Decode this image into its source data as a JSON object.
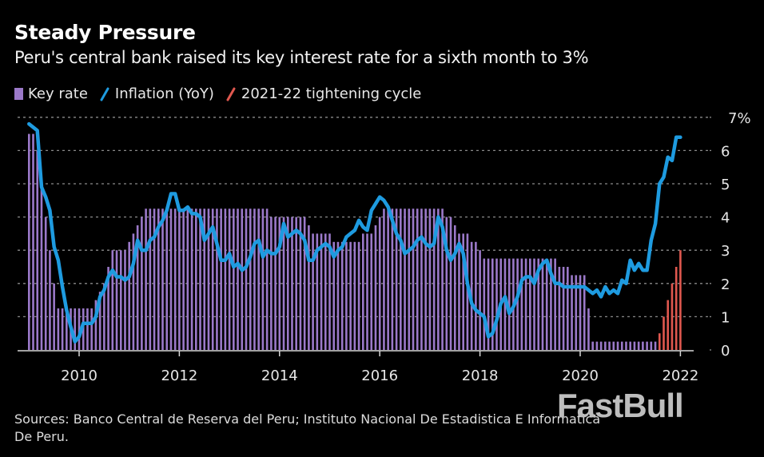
{
  "header": {
    "title": "Steady Pressure",
    "subtitle": "Peru's central bank raised its key interest rate for a sixth month to 3%"
  },
  "legend": [
    {
      "label": "Key rate",
      "color": "#9b79c9",
      "shape": "box"
    },
    {
      "label": "Inflation (YoY)",
      "color": "#1e9be0",
      "shape": "line"
    },
    {
      "label": "2021-22 tightening cycle",
      "color": "#e0584f",
      "shape": "line"
    }
  ],
  "footer": {
    "sources": "Sources: Banco Central de Reserva del Peru; Instituto Nacional De Estadistica E Informatica De Peru.",
    "watermark": "FastBull"
  },
  "chart_data": {
    "type": "bar",
    "title": "Steady Pressure",
    "subtitle": "Peru's central bank raised its key interest rate for a sixth month to 3%",
    "xlabel": "",
    "ylabel": "",
    "ylim": [
      0,
      7
    ],
    "y_ticks": [
      "0",
      "1",
      "2",
      "3",
      "4",
      "5",
      "6",
      "7%"
    ],
    "x_ticks": [
      "2010",
      "2012",
      "2014",
      "2016",
      "2018",
      "2020",
      "2022"
    ],
    "x_start": "2009-01",
    "frequency": "monthly",
    "grid": true,
    "legend_position": "top-left",
    "colors": {
      "key_rate": "#9b79c9",
      "inflation": "#1e9be0",
      "tightening": "#e0584f",
      "grid": "#8a8a8a"
    },
    "series": [
      {
        "name": "Key rate",
        "type": "bar",
        "values": [
          6.5,
          6.5,
          6.0,
          5.0,
          4.0,
          3.0,
          2.0,
          1.25,
          1.25,
          1.25,
          1.25,
          1.25,
          1.25,
          1.25,
          1.25,
          1.25,
          1.5,
          1.75,
          2.0,
          2.5,
          3.0,
          3.0,
          3.0,
          3.0,
          3.25,
          3.5,
          3.75,
          4.0,
          4.25,
          4.25,
          4.25,
          4.25,
          4.25,
          4.25,
          4.25,
          4.25,
          4.25,
          4.25,
          4.25,
          4.25,
          4.25,
          4.25,
          4.25,
          4.25,
          4.25,
          4.25,
          4.25,
          4.25,
          4.25,
          4.25,
          4.25,
          4.25,
          4.25,
          4.25,
          4.25,
          4.25,
          4.25,
          4.25,
          4.0,
          4.0,
          4.0,
          4.0,
          4.0,
          4.0,
          4.0,
          4.0,
          4.0,
          3.75,
          3.5,
          3.5,
          3.5,
          3.5,
          3.5,
          3.25,
          3.25,
          3.25,
          3.25,
          3.25,
          3.25,
          3.25,
          3.5,
          3.5,
          3.5,
          3.75,
          4.0,
          4.25,
          4.25,
          4.25,
          4.25,
          4.25,
          4.25,
          4.25,
          4.25,
          4.25,
          4.25,
          4.25,
          4.25,
          4.25,
          4.25,
          4.25,
          4.0,
          4.0,
          3.75,
          3.5,
          3.5,
          3.5,
          3.25,
          3.25,
          3.0,
          2.75,
          2.75,
          2.75,
          2.75,
          2.75,
          2.75,
          2.75,
          2.75,
          2.75,
          2.75,
          2.75,
          2.75,
          2.75,
          2.75,
          2.75,
          2.75,
          2.75,
          2.75,
          2.5,
          2.5,
          2.5,
          2.25,
          2.25,
          2.25,
          2.25,
          1.25,
          0.25,
          0.25,
          0.25,
          0.25,
          0.25,
          0.25,
          0.25,
          0.25,
          0.25,
          0.25,
          0.25,
          0.25,
          0.25,
          0.25,
          0.25,
          0.25
        ]
      },
      {
        "name": "2021-22 tightening cycle",
        "type": "bar",
        "start": "2021-08",
        "values": [
          0.5,
          1.0,
          1.5,
          2.0,
          2.5,
          3.0
        ]
      },
      {
        "name": "Inflation (YoY)",
        "type": "line",
        "values": [
          6.8,
          6.7,
          6.6,
          4.9,
          4.6,
          4.2,
          3.1,
          2.7,
          1.9,
          1.2,
          0.7,
          0.25,
          0.4,
          0.8,
          0.8,
          0.8,
          1.0,
          1.6,
          1.8,
          2.2,
          2.4,
          2.2,
          2.2,
          2.1,
          2.2,
          2.6,
          3.3,
          3.0,
          3.0,
          3.3,
          3.4,
          3.7,
          3.9,
          4.2,
          4.7,
          4.7,
          4.2,
          4.2,
          4.3,
          4.1,
          4.1,
          4.0,
          3.3,
          3.5,
          3.7,
          3.2,
          2.7,
          2.7,
          2.9,
          2.5,
          2.6,
          2.4,
          2.5,
          2.8,
          3.2,
          3.3,
          2.8,
          3.0,
          2.9,
          2.9,
          3.1,
          3.8,
          3.4,
          3.5,
          3.6,
          3.5,
          3.3,
          2.7,
          2.7,
          3.0,
          3.1,
          3.2,
          3.1,
          2.8,
          3.0,
          3.1,
          3.4,
          3.5,
          3.6,
          3.9,
          3.7,
          3.6,
          4.2,
          4.4,
          4.6,
          4.5,
          4.3,
          3.9,
          3.5,
          3.3,
          2.9,
          3.0,
          3.1,
          3.3,
          3.4,
          3.2,
          3.1,
          3.2,
          4.0,
          3.7,
          3.0,
          2.7,
          2.9,
          3.2,
          2.9,
          2.0,
          1.4,
          1.2,
          1.1,
          1.0,
          0.4,
          0.5,
          0.9,
          1.4,
          1.6,
          1.1,
          1.3,
          1.6,
          2.1,
          2.2,
          2.2,
          2.0,
          2.4,
          2.6,
          2.7,
          2.3,
          2.0,
          2.0,
          1.9,
          1.9,
          1.9,
          1.9,
          1.9,
          1.9,
          1.8,
          1.7,
          1.8,
          1.6,
          1.9,
          1.7,
          1.8,
          1.7,
          2.1,
          2.0,
          2.7,
          2.4,
          2.6,
          2.4,
          2.4,
          3.3,
          3.8,
          5.0,
          5.2,
          5.8,
          5.7,
          6.4,
          6.4
        ]
      }
    ]
  }
}
